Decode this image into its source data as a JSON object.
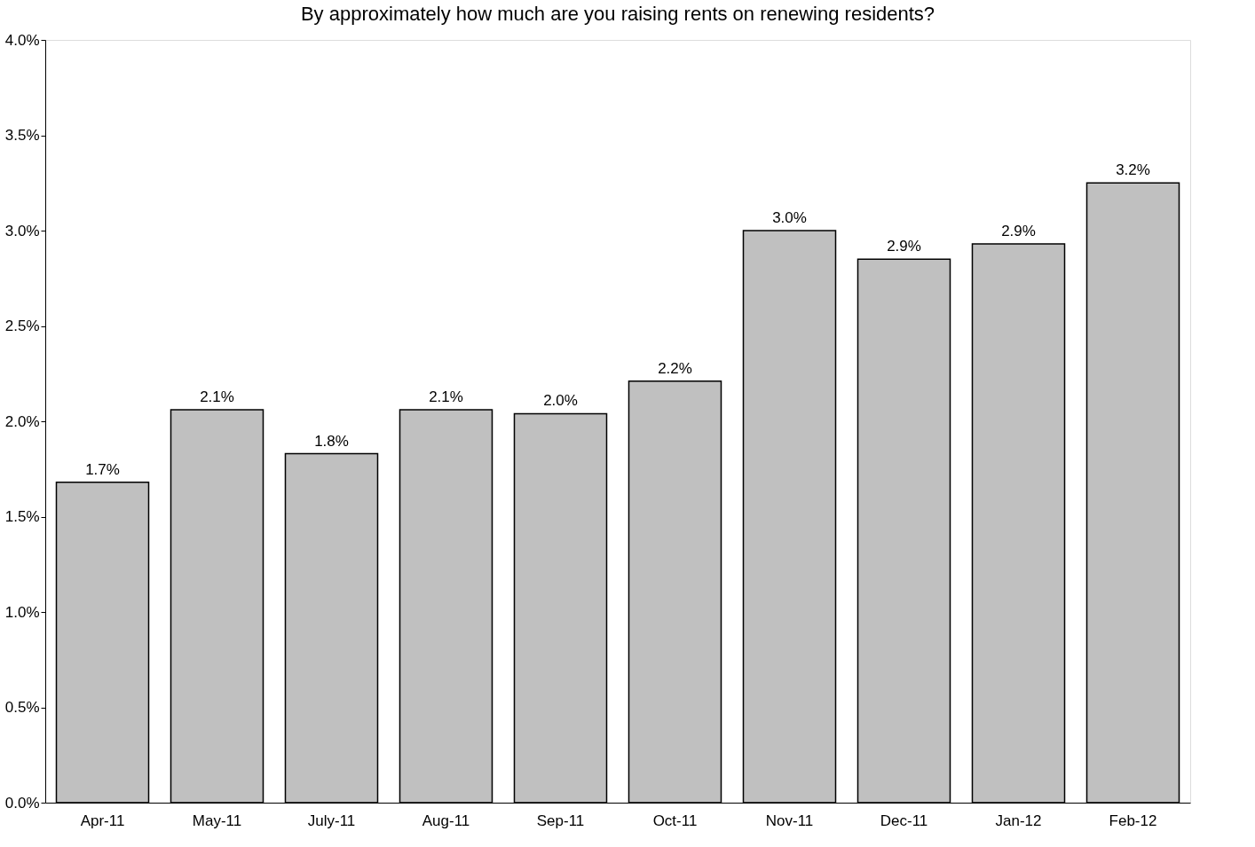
{
  "chart_data": {
    "type": "bar",
    "title": "By approximately how much are you raising rents on renewing residents?",
    "categories": [
      "Apr-11",
      "May-11",
      "July-11",
      "Aug-11",
      "Sep-11",
      "Oct-11",
      "Nov-11",
      "Dec-11",
      "Jan-12",
      "Feb-12"
    ],
    "values": [
      1.68,
      2.06,
      1.83,
      2.06,
      2.04,
      2.21,
      3.0,
      2.85,
      2.93,
      3.25
    ],
    "value_labels": [
      "1.7%",
      "2.1%",
      "1.8%",
      "2.1%",
      "2.0%",
      "2.2%",
      "3.0%",
      "2.9%",
      "2.9%",
      "3.2%"
    ],
    "color": "#c0c0c0",
    "ylim": [
      0,
      4
    ],
    "yticks": [
      {
        "value": 0,
        "label": "0.0%"
      },
      {
        "value": 0.5,
        "label": "0.5%"
      },
      {
        "value": 1,
        "label": "1.0%"
      },
      {
        "value": 1.5,
        "label": "1.5%"
      },
      {
        "value": 2,
        "label": "2.0%"
      },
      {
        "value": 2.5,
        "label": "2.5%"
      },
      {
        "value": 3,
        "label": "3.0%"
      },
      {
        "value": 3.5,
        "label": "3.5%"
      },
      {
        "value": 4,
        "label": "4.0%"
      }
    ],
    "grid": false
  }
}
